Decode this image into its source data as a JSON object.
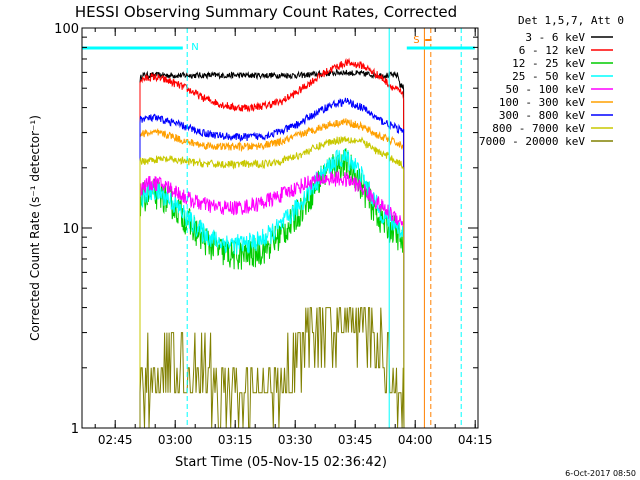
{
  "chart_data": {
    "type": "line",
    "title": "HESSI Observing Summary Count Rates, Corrected",
    "xlabel": "Start Time (05-Nov-15 02:36:42)",
    "ylabel": "Corrected Count Rate (s⁻¹ detector⁻¹)",
    "x_unit": "minutes since 02:36:42",
    "xlim": [
      0,
      99
    ],
    "ylim": [
      1,
      100
    ],
    "y_scale": "log",
    "x_ticks": [
      {
        "value": 8.3,
        "label": "02:45"
      },
      {
        "value": 23.3,
        "label": "03:00"
      },
      {
        "value": 38.3,
        "label": "03:15"
      },
      {
        "value": 53.3,
        "label": "03:30"
      },
      {
        "value": 68.3,
        "label": "03:45"
      },
      {
        "value": 83.3,
        "label": "04:00"
      },
      {
        "value": 98.3,
        "label": "04:15"
      }
    ],
    "y_ticks": [
      {
        "value": 1,
        "label": "1"
      },
      {
        "value": 10,
        "label": "10"
      },
      {
        "value": 100,
        "label": "100"
      }
    ],
    "legend": {
      "header": "Det 1,5,7, Att 0",
      "placement": "right"
    },
    "series": [
      {
        "name": "3 - 6 keV",
        "color": "#000000",
        "x": [
          14.5,
          15,
          20,
          30,
          40,
          50,
          55,
          60,
          65,
          70,
          75,
          79,
          79.5,
          80.5
        ],
        "y": [
          55,
          58,
          58,
          58,
          58,
          58,
          58,
          59,
          60,
          59,
          58,
          58,
          52,
          50
        ]
      },
      {
        "name": "6 - 12 keV",
        "color": "#ff0000",
        "x": [
          14.5,
          18,
          22,
          26,
          30,
          34,
          38,
          42,
          46,
          50,
          54,
          58,
          62,
          66,
          70,
          74,
          78,
          79.5,
          80.5
        ],
        "y": [
          55,
          57,
          54,
          50,
          45,
          42,
          40,
          40,
          41,
          43,
          48,
          55,
          62,
          67,
          65,
          58,
          50,
          48,
          45
        ]
      },
      {
        "name": "12 - 25 keV",
        "color": "#00cc00",
        "x": [
          14.5,
          16,
          18,
          20,
          22,
          24,
          26,
          28,
          30,
          32,
          34,
          36,
          38,
          40,
          42,
          44,
          46,
          48,
          50,
          52,
          54,
          56,
          58,
          60,
          62,
          64,
          66,
          68,
          70,
          72,
          74,
          76,
          78,
          79.5,
          80.5
        ],
        "y": [
          13.5,
          14.5,
          14.8,
          14.5,
          13.5,
          12.3,
          11.0,
          9.9,
          9.0,
          8.3,
          7.8,
          7.5,
          7.3,
          7.3,
          7.4,
          7.6,
          8.0,
          8.6,
          9.4,
          10.4,
          11.8,
          13.5,
          15.6,
          18.0,
          20.0,
          21.0,
          21.0,
          19.0,
          16.0,
          13.5,
          11.5,
          10.3,
          9.8,
          8.8,
          8.0
        ]
      },
      {
        "name": "25 - 50 keV",
        "color": "#00ffff",
        "x": [
          14.5,
          16,
          18,
          20,
          22,
          24,
          26,
          28,
          30,
          32,
          34,
          36,
          38,
          40,
          42,
          44,
          46,
          48,
          50,
          52,
          54,
          56,
          58,
          60,
          62,
          64,
          66,
          68,
          70,
          72,
          74,
          76,
          78,
          79.5,
          80.5
        ],
        "y": [
          14.0,
          15.0,
          15.2,
          14.8,
          13.8,
          12.6,
          11.4,
          10.4,
          9.6,
          9.0,
          8.6,
          8.4,
          8.3,
          8.3,
          8.4,
          8.6,
          9.0,
          9.6,
          10.4,
          11.4,
          12.8,
          14.5,
          16.5,
          18.5,
          20.5,
          22.0,
          22.5,
          21.0,
          18.0,
          15.0,
          12.6,
          11.2,
          10.6,
          9.8,
          9.5
        ]
      },
      {
        "name": "50 - 100 keV",
        "color": "#ff00ff",
        "x": [
          14.5,
          16,
          18,
          20,
          22,
          24,
          26,
          28,
          30,
          32,
          34,
          36,
          38,
          40,
          42,
          44,
          46,
          48,
          50,
          52,
          54,
          56,
          58,
          60,
          62,
          64,
          66,
          68,
          70,
          72,
          74,
          76,
          78,
          79.5,
          80.5
        ],
        "y": [
          15.5,
          16.5,
          16.8,
          16.5,
          15.8,
          15.0,
          14.2,
          13.6,
          13.2,
          12.9,
          12.7,
          12.6,
          12.6,
          12.7,
          12.9,
          13.2,
          13.6,
          14.1,
          14.7,
          15.3,
          16.0,
          16.7,
          17.2,
          17.5,
          17.6,
          17.6,
          17.4,
          16.8,
          15.8,
          14.6,
          13.3,
          12.2,
          11.5,
          11.0,
          10.5
        ]
      },
      {
        "name": "100 - 300 keV",
        "color": "#ffa000",
        "x": [
          14.5,
          18,
          22,
          26,
          30,
          34,
          38,
          42,
          46,
          50,
          54,
          58,
          62,
          66,
          70,
          74,
          78,
          79.5,
          80.5
        ],
        "y": [
          29.5,
          30,
          29,
          27,
          26,
          25.5,
          25.5,
          25.5,
          26,
          27,
          29,
          31,
          33,
          34,
          32,
          29,
          27,
          26,
          25
        ]
      },
      {
        "name": "300 - 800 keV",
        "color": "#0000ff",
        "x": [
          14.5,
          18,
          22,
          26,
          30,
          34,
          38,
          42,
          46,
          50,
          54,
          58,
          62,
          66,
          70,
          74,
          78,
          79.5,
          80.5
        ],
        "y": [
          35,
          35.5,
          34,
          32,
          30,
          29,
          28.5,
          28.5,
          29,
          30.5,
          33,
          37,
          41,
          43,
          40,
          35,
          32,
          31,
          30
        ]
      },
      {
        "name": "800 - 7000 keV",
        "color": "#c8c800",
        "x": [
          14.5,
          18,
          22,
          26,
          30,
          34,
          38,
          42,
          46,
          50,
          54,
          58,
          62,
          66,
          70,
          74,
          78,
          79.5,
          80.5
        ],
        "y": [
          21.5,
          22,
          22,
          21.5,
          21,
          20.8,
          20.8,
          20.8,
          21,
          21.8,
          23,
          25,
          27,
          28,
          27,
          24,
          22,
          21,
          20
        ]
      },
      {
        "name": "7000 - 20000 keV",
        "color": "#808000",
        "x": [
          14.5,
          20,
          25,
          30,
          35,
          40,
          45,
          50,
          55,
          60,
          65,
          70,
          75,
          79,
          80.5
        ],
        "y": [
          1.6,
          2.0,
          2.2,
          1.8,
          1.5,
          1.3,
          1.4,
          1.8,
          2.4,
          3.0,
          3.5,
          3.2,
          2.3,
          1.7,
          1.5
        ]
      }
    ],
    "annotations": {
      "markers": [
        {
          "label": "N",
          "color": "#00ffff"
        },
        {
          "label": "S",
          "color": "#ff8000"
        }
      ],
      "footer": "6-Oct-2017 08:50"
    }
  }
}
